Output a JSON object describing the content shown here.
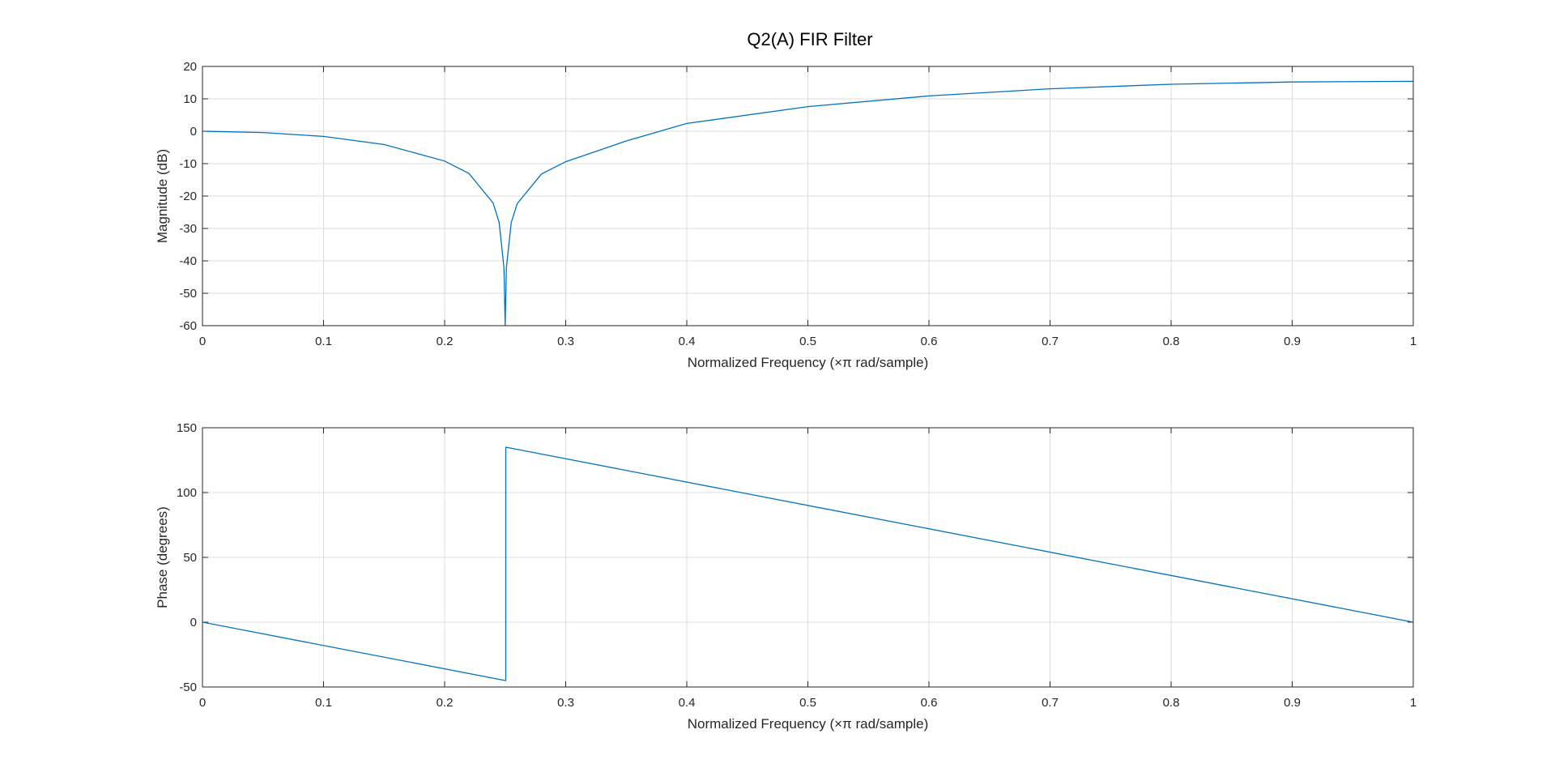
{
  "title": "Q2(A) FIR Filter",
  "colors": {
    "series": "#0072BD",
    "grid": "#dcdcdc",
    "axes": "#262626"
  },
  "chart_data": [
    {
      "type": "line",
      "xlabel": "Normalized Frequency  (×π rad/sample)",
      "ylabel": "Magnitude (dB)",
      "xlim": [
        0,
        1
      ],
      "ylim": [
        -60,
        20
      ],
      "xticks": [
        "0",
        "0.1",
        "0.2",
        "0.3",
        "0.4",
        "0.5",
        "0.6",
        "0.7",
        "0.8",
        "0.9",
        "1"
      ],
      "yticks": [
        "-60",
        "-50",
        "-40",
        "-30",
        "-20",
        "-10",
        "0",
        "10",
        "20"
      ],
      "grid": true,
      "series": [
        {
          "x": [
            0,
            0.05,
            0.1,
            0.15,
            0.2,
            0.22,
            0.24,
            0.245,
            0.249,
            0.25,
            0.251,
            0.255,
            0.26,
            0.28,
            0.3,
            0.35,
            0.4,
            0.5,
            0.6,
            0.7,
            0.8,
            0.9,
            1.0
          ],
          "y": [
            0,
            -0.4,
            -1.6,
            -4.1,
            -9.2,
            -13.0,
            -22.1,
            -28.1,
            -42.1,
            -60,
            -42.1,
            -28.2,
            -22.3,
            -13.2,
            -9.4,
            -3.0,
            2.4,
            7.6,
            10.9,
            13.1,
            14.5,
            15.2,
            15.4
          ]
        }
      ]
    },
    {
      "type": "line",
      "xlabel": "Normalized Frequency  (×π rad/sample)",
      "ylabel": "Phase (degrees)",
      "xlim": [
        0,
        1
      ],
      "ylim": [
        -50,
        150
      ],
      "xticks": [
        "0",
        "0.1",
        "0.2",
        "0.3",
        "0.4",
        "0.5",
        "0.6",
        "0.7",
        "0.8",
        "0.9",
        "1"
      ],
      "yticks": [
        "-50",
        "0",
        "50",
        "100",
        "150"
      ],
      "grid": true,
      "series": [
        {
          "x": [
            0,
            0.25,
            0.2505,
            0.2505,
            1.0
          ],
          "y": [
            0,
            -45,
            -45,
            135,
            0
          ]
        }
      ]
    }
  ]
}
